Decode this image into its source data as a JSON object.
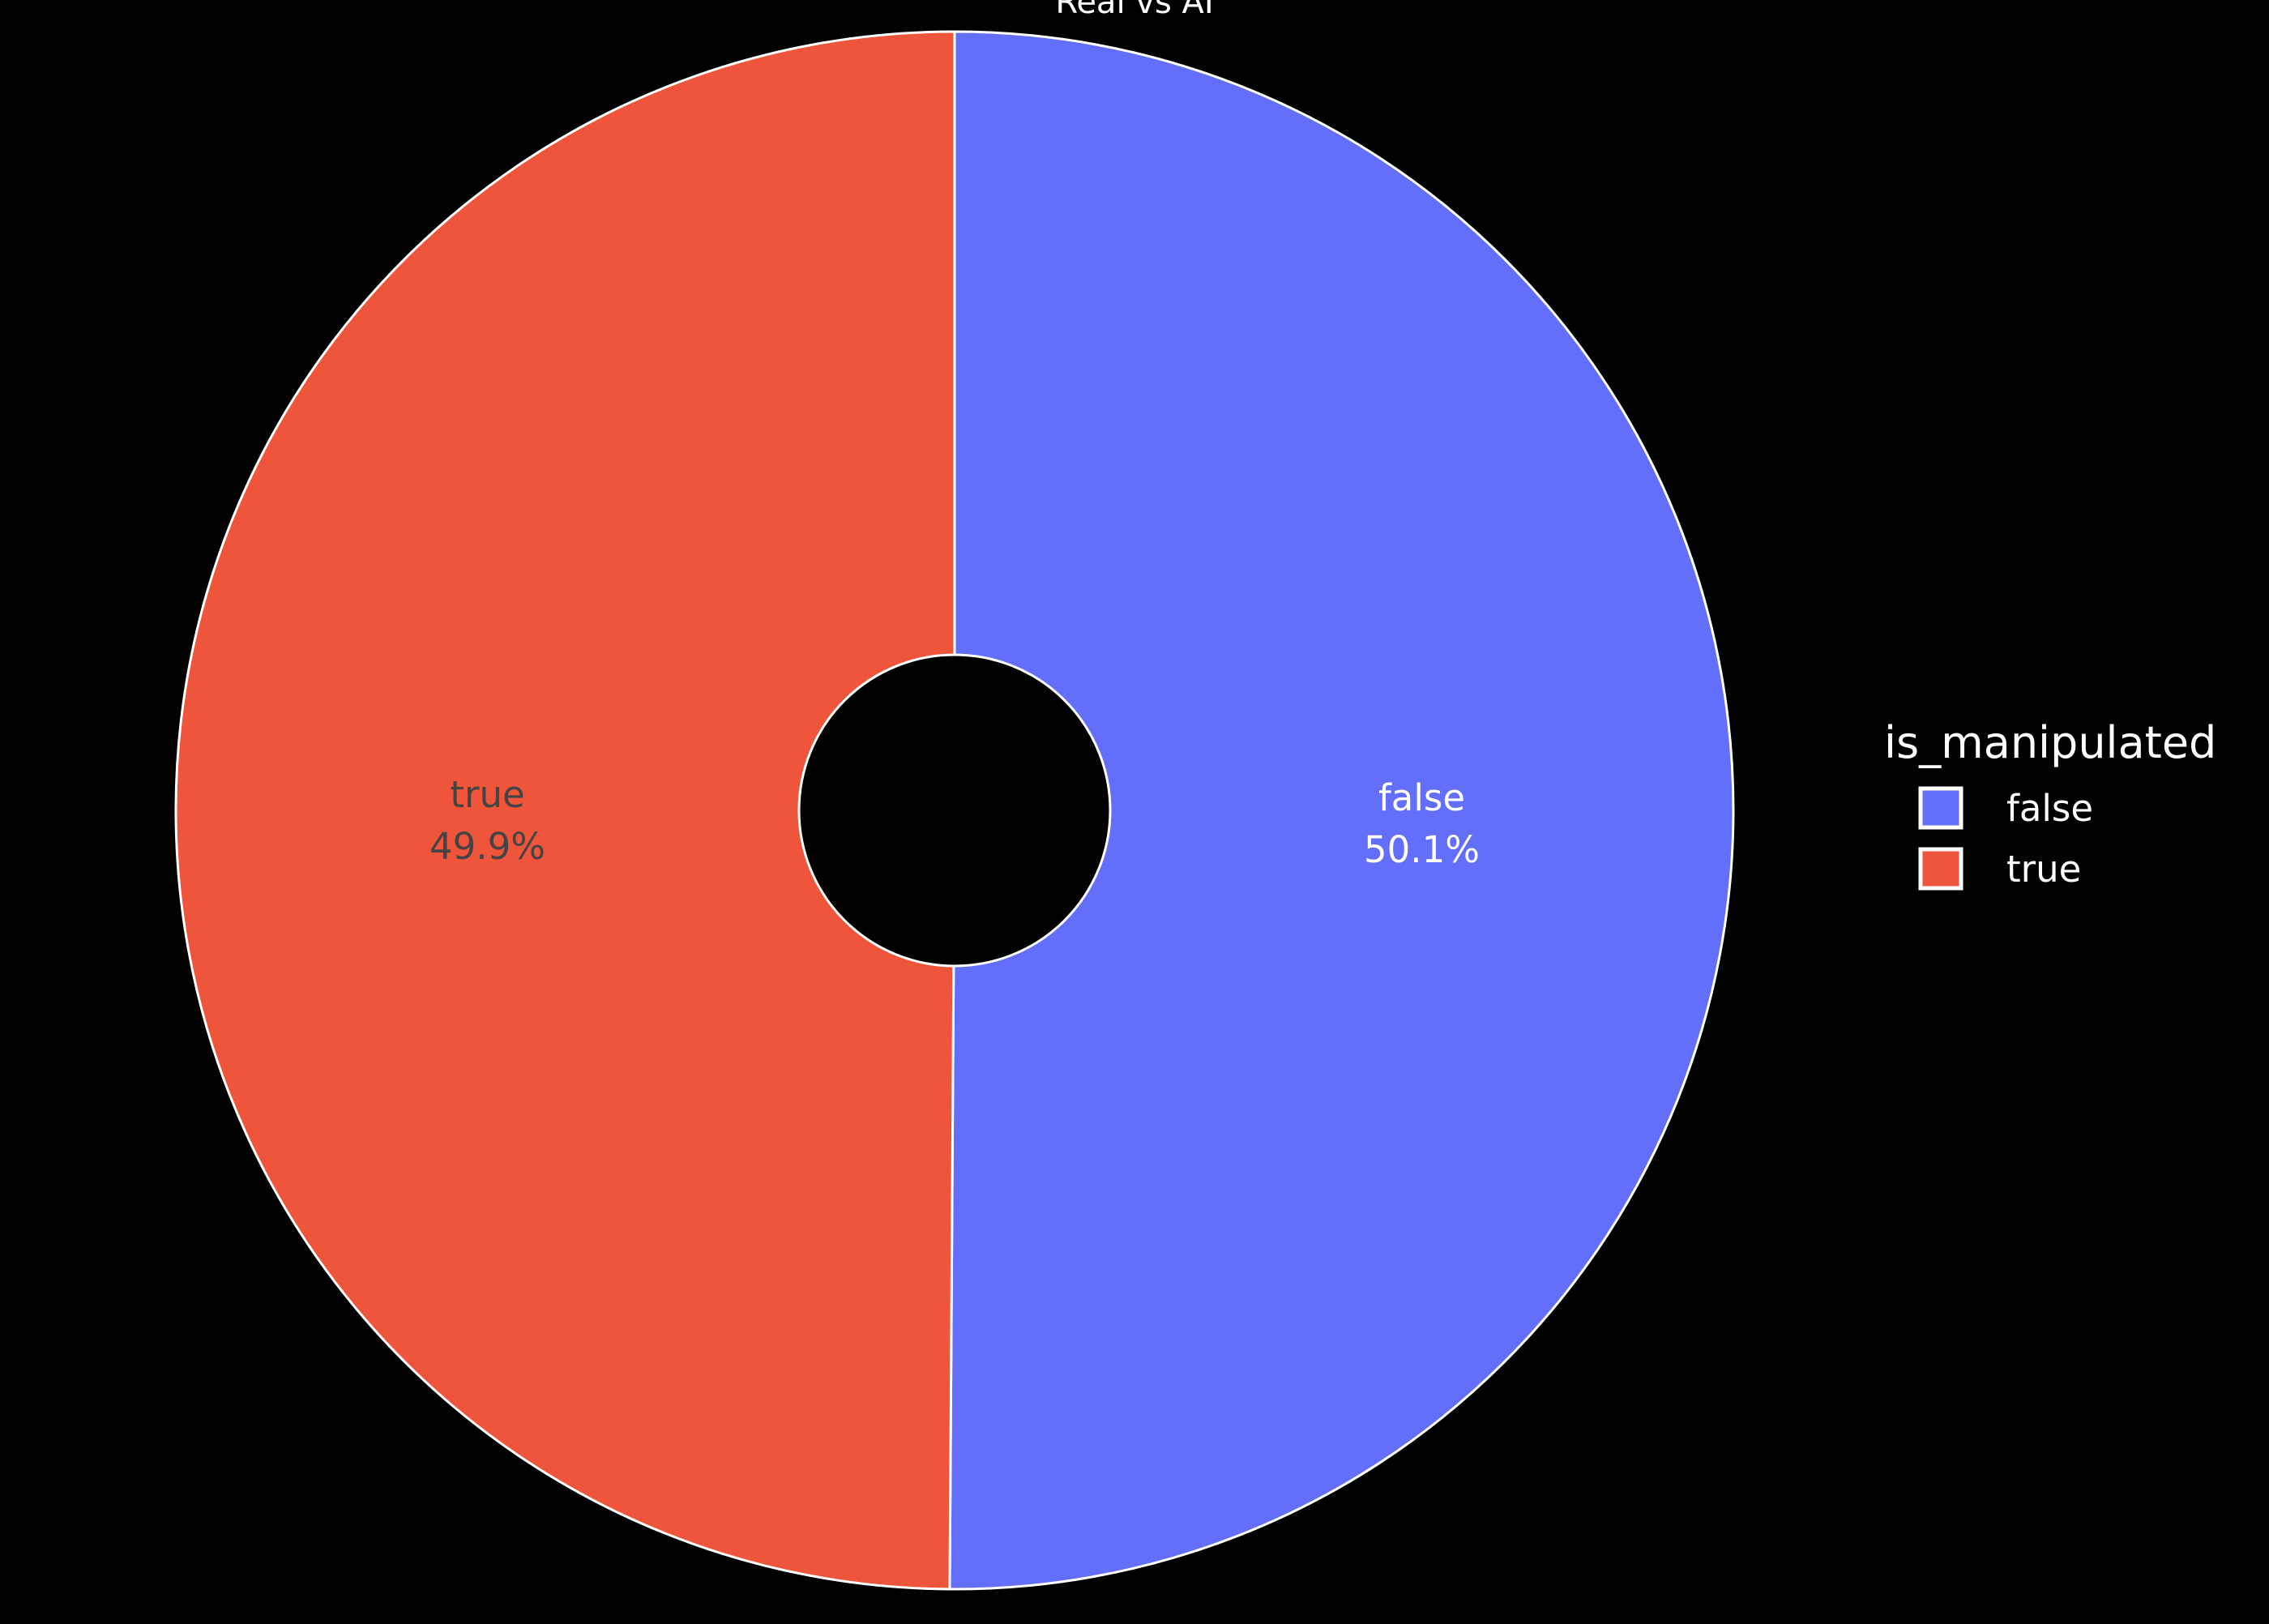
{
  "chart_data": {
    "type": "pie",
    "hole": true,
    "title": "Real vs AI",
    "legend_title": "is_manipulated",
    "legend_position": "right",
    "labels": [
      "false",
      "true"
    ],
    "values": [
      50.1,
      49.9
    ],
    "text_labels": [
      "50.1%",
      "49.9%"
    ],
    "colors": [
      "#636efa",
      "#ef553b"
    ],
    "label_text_colors": [
      "#ffffff",
      "#444444"
    ]
  },
  "colors": {
    "background": "#000000",
    "slice_border": "#ffffff",
    "text": "#ffffff"
  }
}
